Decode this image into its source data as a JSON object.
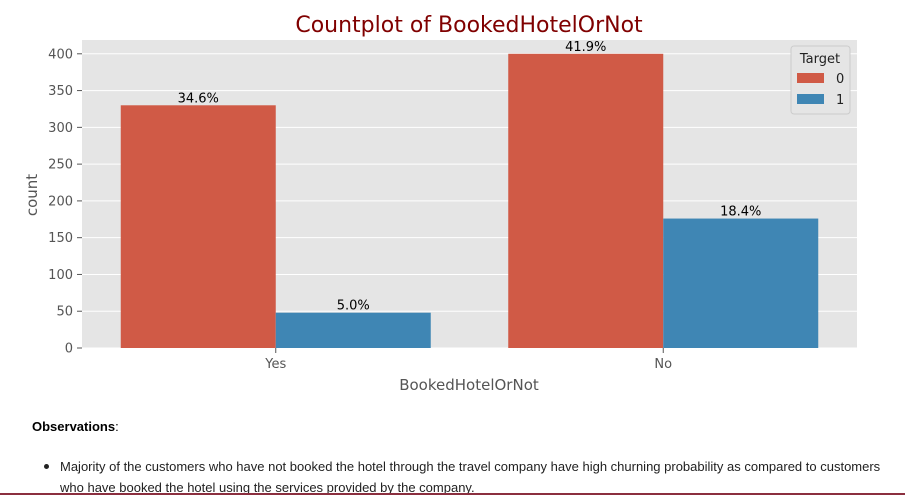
{
  "chart_data": {
    "type": "bar",
    "title": "Countplot of BookedHotelOrNot",
    "xlabel": "BookedHotelOrNot",
    "ylabel": "count",
    "categories": [
      "Yes",
      "No"
    ],
    "series": [
      {
        "name": "0",
        "values": [
          330,
          400
        ],
        "labels": [
          "34.6%",
          "41.9%"
        ],
        "color": "#d05a46"
      },
      {
        "name": "1",
        "values": [
          48,
          176
        ],
        "labels": [
          "5.0%",
          "18.4%"
        ],
        "color": "#3f86b4"
      }
    ],
    "ylim": [
      0,
      425
    ],
    "yticks": [
      0,
      50,
      100,
      150,
      200,
      250,
      300,
      350,
      400
    ],
    "legend_title": "Target",
    "legend_position": "top-right",
    "grid": true,
    "background": "#e5e5e5",
    "title_color": "#800000"
  },
  "observations": {
    "heading": "Observations",
    "suffix": ":",
    "items": [
      "Majority of the customers who have not booked the hotel through the travel company have high churning probability as compared to customers who have booked the hotel using the services provided by the company."
    ]
  }
}
